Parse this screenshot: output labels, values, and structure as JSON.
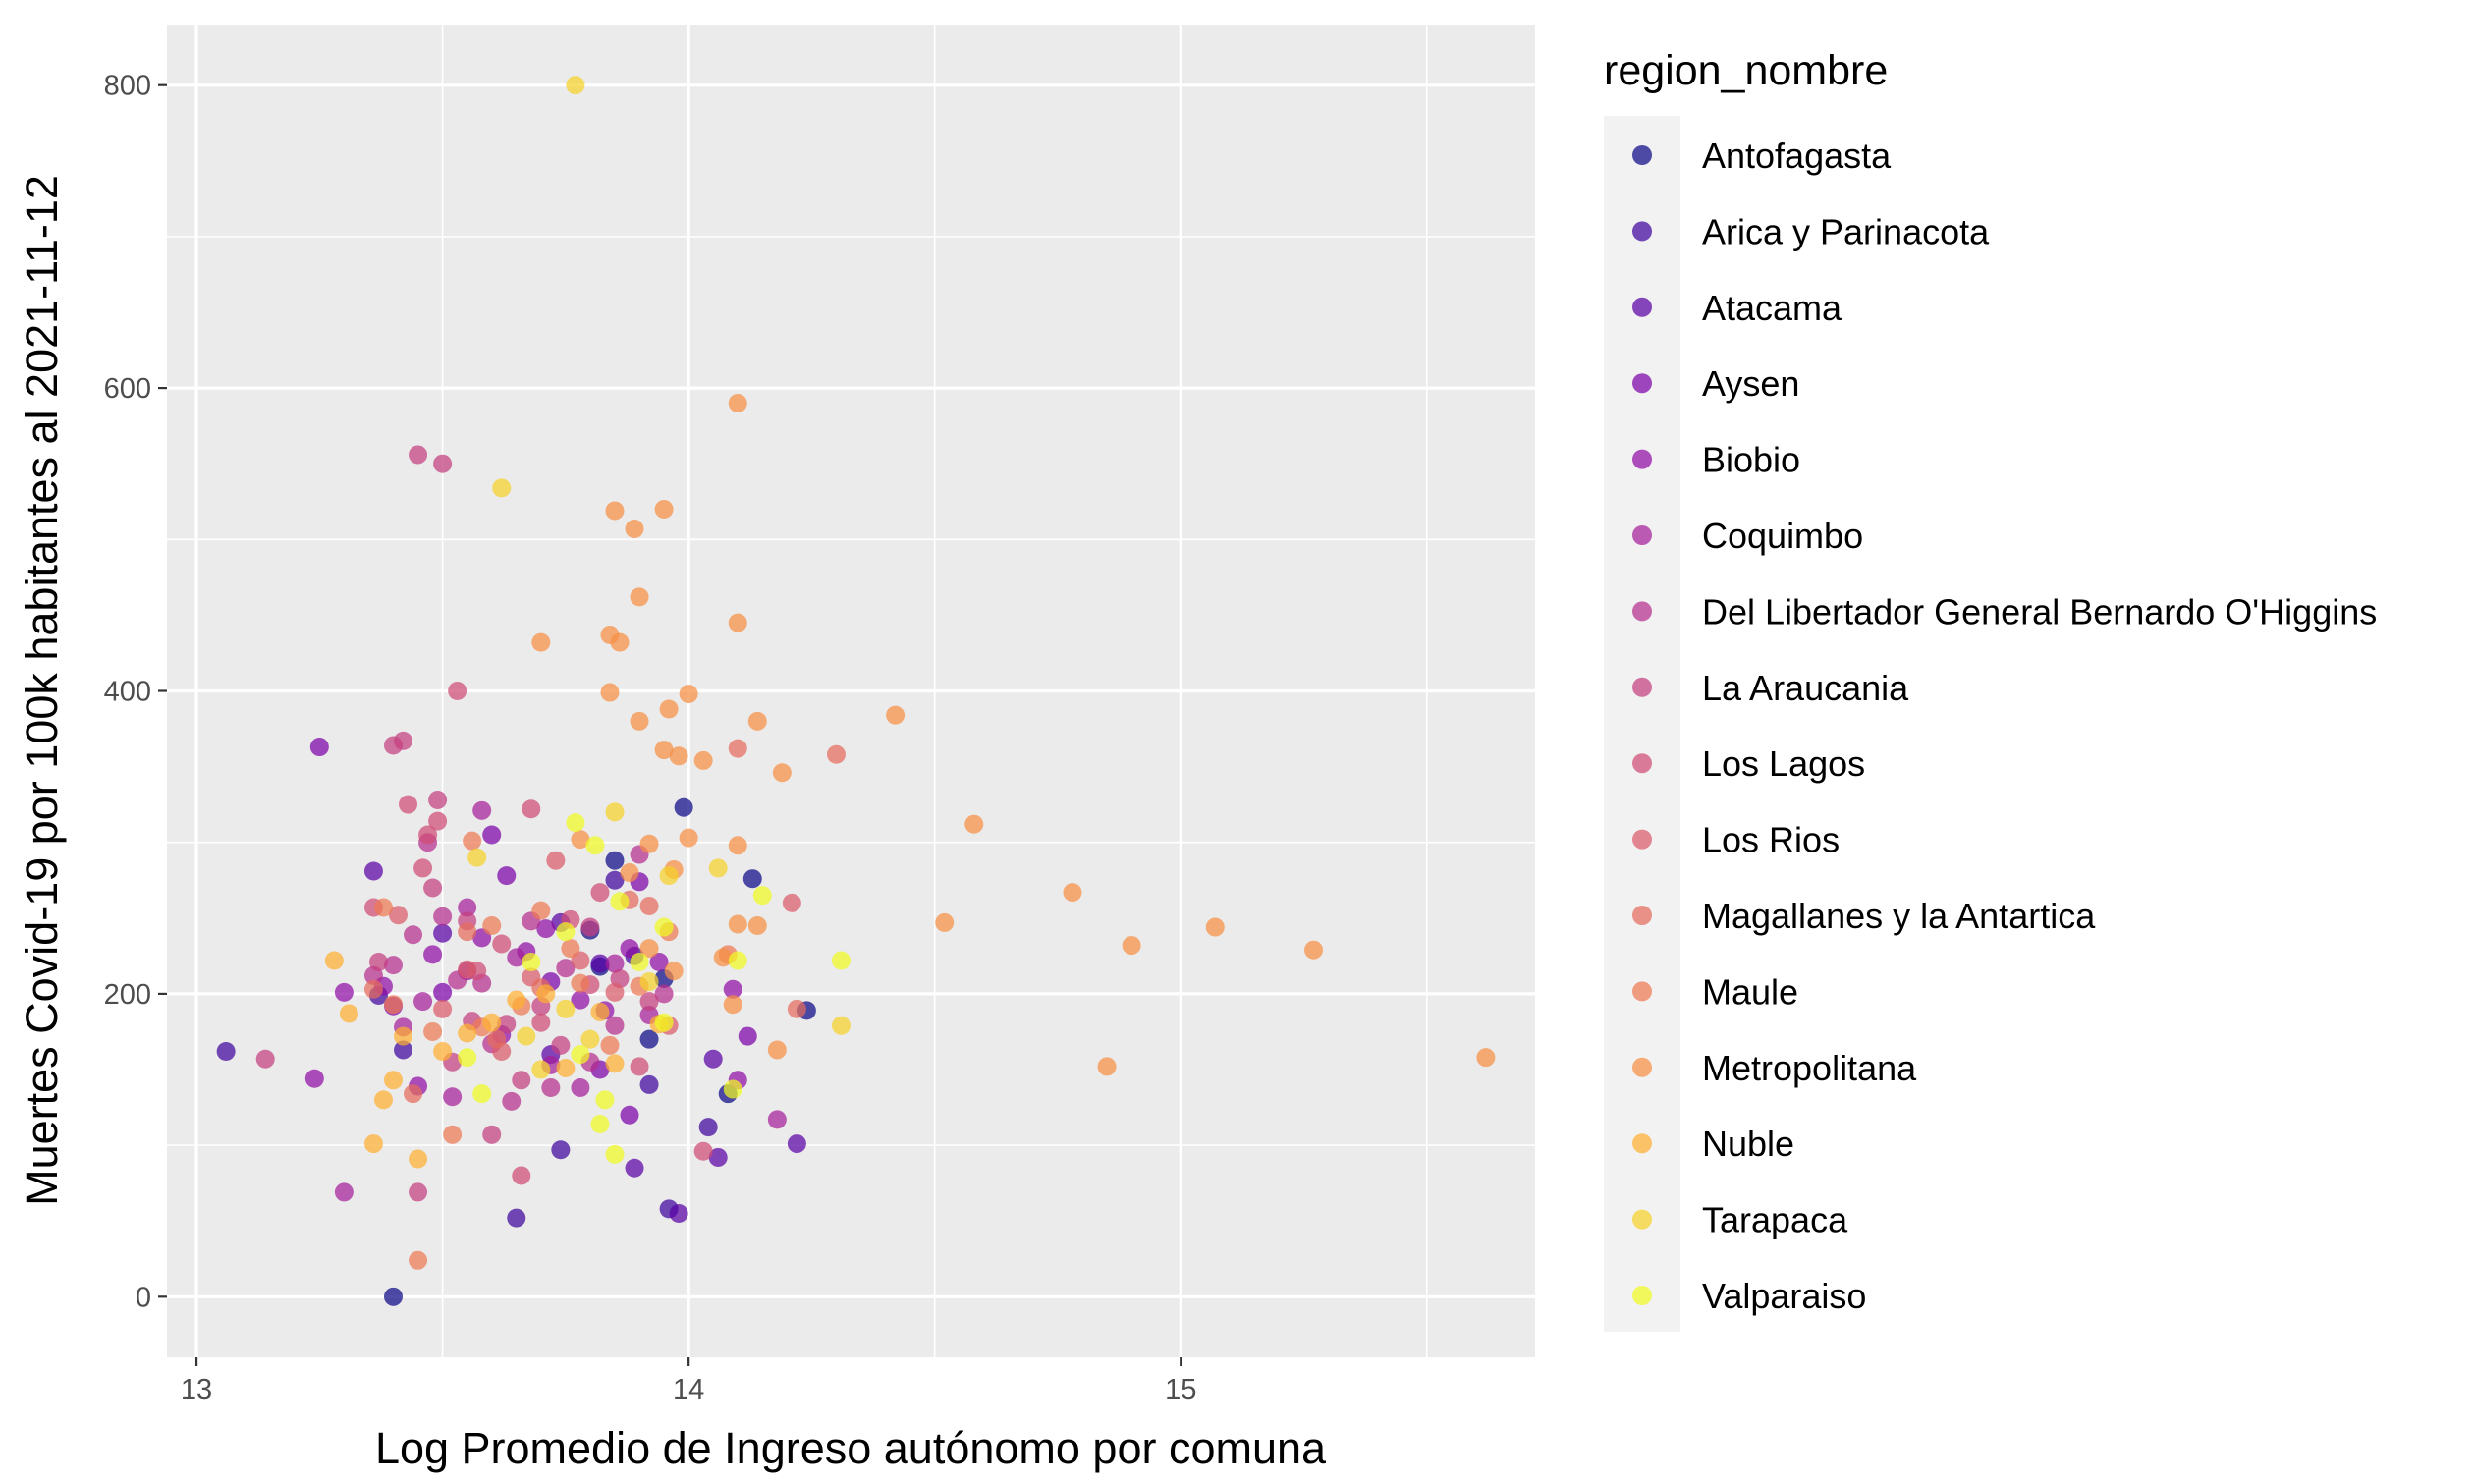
{
  "chart_data": {
    "type": "scatter",
    "xlabel": "Log Promedio de Ingreso autónomo por comuna",
    "ylabel": "Muertes Covid-19 por 100k habitantes al 2021-11-12",
    "xlim": [
      12.94,
      15.72
    ],
    "ylim": [
      -40,
      840
    ],
    "x_ticks": [
      "13",
      "14",
      "15"
    ],
    "y_ticks": [
      "0",
      "200",
      "400",
      "600",
      "800"
    ],
    "grid": true,
    "legend_position": "right",
    "legend_title": "region_nombre",
    "series": [
      {
        "name": "Antofagasta",
        "color": "#0d0887",
        "points": [
          [
            13.4,
            0
          ],
          [
            13.92,
            170
          ],
          [
            14.13,
            276
          ],
          [
            14.24,
            189
          ],
          [
            13.99,
            323
          ],
          [
            14.08,
            134
          ],
          [
            13.82,
            218
          ],
          [
            13.85,
            288
          ],
          [
            13.8,
            242
          ],
          [
            13.95,
            210
          ]
        ]
      },
      {
        "name": "Arica y Parinacota",
        "color": "#3d049b",
        "points": [
          [
            13.06,
            162
          ],
          [
            13.65,
            52
          ],
          [
            13.42,
            163
          ],
          [
            13.89,
            225
          ],
          [
            13.85,
            275
          ],
          [
            13.74,
            97
          ],
          [
            13.96,
            58
          ],
          [
            14.04,
            112
          ],
          [
            13.37,
            199
          ],
          [
            13.92,
            140
          ]
        ]
      },
      {
        "name": "Atacama",
        "color": "#5901a5",
        "points": [
          [
            13.36,
            281
          ],
          [
            13.5,
            240
          ],
          [
            13.74,
            247
          ],
          [
            13.82,
            220
          ],
          [
            14.06,
            92
          ],
          [
            14.22,
            101
          ],
          [
            13.98,
            55
          ],
          [
            14.05,
            157
          ],
          [
            13.89,
            85
          ],
          [
            13.72,
            160
          ]
        ]
      },
      {
        "name": "Aysen",
        "color": "#7a02a8",
        "points": [
          [
            13.25,
            363
          ],
          [
            13.63,
            278
          ],
          [
            13.5,
            201
          ],
          [
            13.6,
            305
          ],
          [
            13.72,
            208
          ],
          [
            13.9,
            274
          ],
          [
            14.12,
            172
          ],
          [
            13.88,
            120
          ],
          [
            13.4,
            192
          ],
          [
            13.82,
            150
          ]
        ]
      },
      {
        "name": "Biobio",
        "color": "#8f0da4",
        "points": [
          [
            13.24,
            144
          ],
          [
            13.45,
            139
          ],
          [
            13.55,
            215
          ],
          [
            13.62,
            173
          ],
          [
            13.71,
            243
          ],
          [
            13.83,
            189
          ],
          [
            13.94,
            221
          ],
          [
            14.1,
            143
          ],
          [
            13.3,
            201
          ],
          [
            13.67,
            228
          ],
          [
            13.48,
            226
          ],
          [
            13.58,
            237
          ],
          [
            13.78,
            196
          ],
          [
            14.09,
            203
          ],
          [
            13.38,
            205
          ],
          [
            13.88,
            230
          ]
        ]
      },
      {
        "name": "Coquimbo",
        "color": "#a51f99",
        "points": [
          [
            13.3,
            69
          ],
          [
            13.46,
            195
          ],
          [
            13.58,
            321
          ],
          [
            13.65,
            224
          ],
          [
            13.78,
            138
          ],
          [
            13.92,
            186
          ],
          [
            14.18,
            117
          ],
          [
            13.52,
            132
          ],
          [
            13.72,
            153
          ],
          [
            13.42,
            178
          ],
          [
            13.55,
            257
          ],
          [
            13.85,
            220
          ]
        ]
      },
      {
        "name": "Del Libertador General Bernardo O'Higgins",
        "color": "#b42e8d",
        "points": [
          [
            13.4,
            219
          ],
          [
            13.5,
            251
          ],
          [
            13.53,
            209
          ],
          [
            13.6,
            167
          ],
          [
            13.68,
            248
          ],
          [
            13.75,
            217
          ],
          [
            13.85,
            179
          ],
          [
            13.95,
            200
          ],
          [
            13.36,
            212
          ],
          [
            13.47,
            300
          ],
          [
            13.64,
            129
          ],
          [
            13.72,
            138
          ],
          [
            13.8,
            155
          ],
          [
            13.58,
            207
          ],
          [
            13.44,
            239
          ],
          [
            13.9,
            292
          ]
        ]
      },
      {
        "name": "La Araucania",
        "color": "#c43e7f",
        "points": [
          [
            13.4,
            364
          ],
          [
            13.45,
            556
          ],
          [
            13.5,
            550
          ],
          [
            13.49,
            328
          ],
          [
            13.55,
            248
          ],
          [
            13.63,
            180
          ],
          [
            13.7,
            192
          ],
          [
            13.8,
            244
          ],
          [
            13.86,
            210
          ],
          [
            13.92,
            195
          ],
          [
            13.42,
            367
          ],
          [
            13.56,
            182
          ],
          [
            13.66,
            143
          ],
          [
            13.74,
            166
          ],
          [
            13.37,
            221
          ],
          [
            13.14,
            157
          ],
          [
            13.45,
            69
          ],
          [
            13.52,
            155
          ],
          [
            13.6,
            107
          ],
          [
            13.48,
            270
          ]
        ]
      },
      {
        "name": "Los Lagos",
        "color": "#cf4c74",
        "points": [
          [
            13.53,
            400
          ],
          [
            13.43,
            325
          ],
          [
            13.49,
            314
          ],
          [
            13.62,
            233
          ],
          [
            13.68,
            322
          ],
          [
            13.76,
            249
          ],
          [
            13.82,
            267
          ],
          [
            13.9,
            152
          ],
          [
            14.03,
            96
          ],
          [
            13.46,
            283
          ],
          [
            13.57,
            215
          ],
          [
            13.7,
            181
          ],
          [
            13.8,
            206
          ],
          [
            13.36,
            257
          ],
          [
            13.47,
            305
          ],
          [
            13.66,
            80
          ]
        ]
      },
      {
        "name": "Los Rios",
        "color": "#da5b69",
        "points": [
          [
            13.41,
            252
          ],
          [
            13.55,
            216
          ],
          [
            13.68,
            211
          ],
          [
            13.73,
            288
          ],
          [
            13.85,
            201
          ],
          [
            13.96,
            179
          ],
          [
            14.21,
            260
          ],
          [
            13.5,
            190
          ],
          [
            13.62,
            162
          ],
          [
            13.78,
            222
          ]
        ]
      },
      {
        "name": "Magallanes y la Antartica",
        "color": "#e56b5d",
        "points": [
          [
            14.3,
            358
          ],
          [
            14.1,
            362
          ],
          [
            13.88,
            262
          ],
          [
            13.7,
            204
          ],
          [
            13.55,
            241
          ],
          [
            13.44,
            134
          ],
          [
            13.61,
            170
          ],
          [
            13.92,
            258
          ],
          [
            14.22,
            190
          ],
          [
            13.36,
            203
          ]
        ]
      },
      {
        "name": "Maule",
        "color": "#ed7953",
        "points": [
          [
            13.45,
            24
          ],
          [
            13.38,
            257
          ],
          [
            13.52,
            107
          ],
          [
            13.58,
            178
          ],
          [
            13.66,
            192
          ],
          [
            13.76,
            230
          ],
          [
            13.84,
            166
          ],
          [
            13.96,
            241
          ],
          [
            14.08,
            226
          ],
          [
            13.48,
            175
          ],
          [
            13.6,
            245
          ],
          [
            13.7,
            255
          ],
          [
            13.9,
            205
          ],
          [
            13.4,
            193
          ],
          [
            13.56,
            301
          ],
          [
            13.78,
            207
          ]
        ]
      },
      {
        "name": "Metropolitana",
        "color": "#f68f44",
        "points": [
          [
            14.1,
            590
          ],
          [
            13.89,
            507
          ],
          [
            13.85,
            519
          ],
          [
            13.95,
            520
          ],
          [
            13.9,
            462
          ],
          [
            14.1,
            445
          ],
          [
            13.7,
            432
          ],
          [
            13.86,
            432
          ],
          [
            13.84,
            437
          ],
          [
            13.84,
            399
          ],
          [
            14.0,
            398
          ],
          [
            13.96,
            388
          ],
          [
            13.9,
            380
          ],
          [
            14.14,
            380
          ],
          [
            13.95,
            361
          ],
          [
            14.03,
            354
          ],
          [
            13.98,
            357
          ],
          [
            14.42,
            384
          ],
          [
            14.58,
            312
          ],
          [
            14.52,
            247
          ],
          [
            14.78,
            267
          ],
          [
            14.9,
            232
          ],
          [
            15.07,
            244
          ],
          [
            15.27,
            229
          ],
          [
            15.62,
            158
          ],
          [
            14.85,
            152
          ],
          [
            14.19,
            346
          ],
          [
            14.1,
            298
          ],
          [
            14.0,
            303
          ],
          [
            13.97,
            282
          ],
          [
            14.14,
            245
          ],
          [
            14.1,
            246
          ],
          [
            14.07,
            224
          ],
          [
            13.97,
            215
          ],
          [
            14.09,
            193
          ],
          [
            14.18,
            163
          ],
          [
            13.78,
            302
          ],
          [
            13.92,
            299
          ],
          [
            13.88,
            280
          ],
          [
            13.92,
            230
          ]
        ]
      },
      {
        "name": "Nuble",
        "color": "#fdaf31",
        "points": [
          [
            13.28,
            222
          ],
          [
            13.31,
            187
          ],
          [
            13.36,
            101
          ],
          [
            13.4,
            143
          ],
          [
            13.45,
            91
          ],
          [
            13.55,
            174
          ],
          [
            13.65,
            196
          ],
          [
            13.75,
            151
          ],
          [
            13.85,
            154
          ],
          [
            13.94,
            180
          ],
          [
            13.38,
            130
          ],
          [
            13.5,
            162
          ],
          [
            13.6,
            181
          ],
          [
            13.71,
            200
          ],
          [
            13.42,
            172
          ],
          [
            13.82,
            188
          ]
        ]
      },
      {
        "name": "Tarapaca",
        "color": "#f5d128",
        "points": [
          [
            13.77,
            800
          ],
          [
            13.62,
            534
          ],
          [
            13.57,
            290
          ],
          [
            13.67,
            172
          ],
          [
            13.75,
            190
          ],
          [
            13.85,
            320
          ],
          [
            13.96,
            278
          ],
          [
            14.06,
            283
          ],
          [
            14.31,
            179
          ],
          [
            13.8,
            170
          ],
          [
            13.92,
            208
          ],
          [
            13.7,
            150
          ]
        ]
      },
      {
        "name": "Valparaiso",
        "color": "#f0f921",
        "points": [
          [
            13.77,
            313
          ],
          [
            13.81,
            298
          ],
          [
            13.86,
            261
          ],
          [
            13.95,
            181
          ],
          [
            14.15,
            265
          ],
          [
            14.31,
            222
          ],
          [
            14.09,
            137
          ],
          [
            13.83,
            130
          ],
          [
            13.85,
            94
          ],
          [
            13.78,
            160
          ],
          [
            13.82,
            114
          ],
          [
            13.95,
            244
          ],
          [
            14.1,
            222
          ],
          [
            13.75,
            241
          ],
          [
            13.9,
            221
          ],
          [
            13.55,
            158
          ],
          [
            13.58,
            134
          ],
          [
            13.68,
            221
          ]
        ]
      }
    ]
  }
}
